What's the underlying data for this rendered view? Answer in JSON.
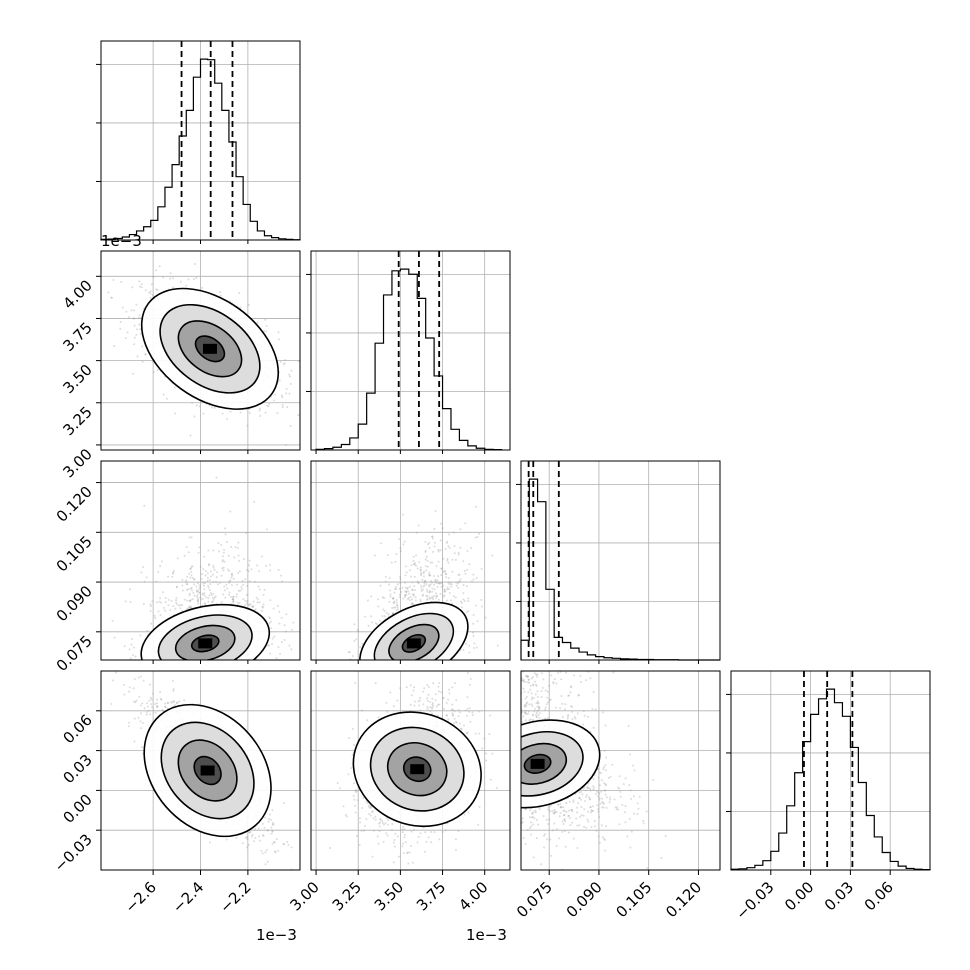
{
  "chart_data": {
    "type": "scatter",
    "kind": "corner-plot",
    "parameters": 4,
    "grid": true,
    "colors": {
      "hist": "#000000",
      "points": "#9a9a9a",
      "density": "#000000",
      "grid": "#b0b0b0"
    },
    "quantile_line_style": "dashed",
    "axes": [
      {
        "range": [
          -2.82,
          -1.98
        ],
        "ticks": [
          -2.6,
          -2.4,
          -2.2
        ],
        "tick_labels": [
          "−2.6",
          "−2.4",
          "−2.2"
        ],
        "offset_label": "1e−3",
        "median": -2.357,
        "quantiles": [
          -2.48,
          -2.357,
          -2.265
        ]
      },
      {
        "range": [
          2.97,
          4.15
        ],
        "ticks": [
          3.0,
          3.25,
          3.5,
          3.75,
          4.0
        ],
        "tick_labels": [
          "3.00",
          "3.25",
          "3.50",
          "3.75",
          "4.00"
        ],
        "offset_label": "1e−3",
        "median": 3.61,
        "quantiles": [
          3.49,
          3.61,
          3.73
        ]
      },
      {
        "range": [
          0.0665,
          0.1265
        ],
        "ticks": [
          0.075,
          0.09,
          0.105,
          0.12
        ],
        "tick_labels": [
          "0.075",
          "0.090",
          "0.105",
          "0.120"
        ],
        "offset_label": "",
        "median": 0.0702,
        "quantiles": [
          0.0688,
          0.0702,
          0.0779
        ]
      },
      {
        "range": [
          -0.06,
          0.09
        ],
        "ticks": [
          -0.03,
          0.0,
          0.03,
          0.06
        ],
        "tick_labels": [
          "−0.03",
          "0.00",
          "0.03",
          "0.06"
        ],
        "offset_label": "",
        "median": 0.0125,
        "quantiles": [
          -0.005,
          0.0125,
          0.0315
        ]
      }
    ],
    "histograms": [
      {
        "param": 0,
        "bins": [
          -2.82,
          -2.79,
          -2.76,
          -2.73,
          -2.7,
          -2.67,
          -2.64,
          -2.61,
          -2.58,
          -2.55,
          -2.52,
          -2.49,
          -2.46,
          -2.43,
          -2.4,
          -2.37,
          -2.34,
          -2.31,
          -2.28,
          -2.25,
          -2.22,
          -2.19,
          -2.16,
          -2.13,
          -2.1,
          -2.07,
          -2.04,
          -2.01,
          -1.98
        ],
        "counts": [
          2,
          3,
          5,
          10,
          18,
          30,
          44,
          65,
          110,
          175,
          250,
          345,
          430,
          540,
          600,
          598,
          520,
          430,
          325,
          210,
          118,
          62,
          30,
          14,
          8,
          4,
          2,
          1
        ]
      },
      {
        "param": 1,
        "bins": [
          3.0,
          3.05,
          3.1,
          3.15,
          3.2,
          3.25,
          3.3,
          3.35,
          3.4,
          3.45,
          3.5,
          3.55,
          3.6,
          3.65,
          3.7,
          3.75,
          3.8,
          3.85,
          3.9,
          3.95,
          4.0,
          4.05,
          4.1
        ],
        "counts": [
          2,
          4,
          8,
          16,
          35,
          75,
          165,
          310,
          450,
          520,
          525,
          510,
          440,
          325,
          215,
          120,
          60,
          28,
          12,
          5,
          2,
          1
        ]
      },
      {
        "param": 2,
        "bins": [
          0.0665,
          0.069,
          0.0715,
          0.074,
          0.0765,
          0.079,
          0.0815,
          0.084,
          0.0865,
          0.089,
          0.0915,
          0.094,
          0.0965,
          0.099,
          0.1015,
          0.104,
          0.1065,
          0.109,
          0.1115,
          0.114,
          0.1165,
          0.119,
          0.1215,
          0.124,
          0.1265
        ],
        "counts": [
          70,
          640,
          560,
          250,
          80,
          62,
          42,
          28,
          18,
          12,
          8,
          6,
          4,
          3,
          2,
          2,
          1,
          1,
          1,
          0,
          0,
          0,
          0,
          0
        ]
      },
      {
        "param": 3,
        "bins": [
          -0.06,
          -0.054,
          -0.048,
          -0.042,
          -0.036,
          -0.03,
          -0.024,
          -0.018,
          -0.012,
          -0.006,
          0.0,
          0.006,
          0.012,
          0.018,
          0.024,
          0.03,
          0.036,
          0.042,
          0.048,
          0.054,
          0.06,
          0.066,
          0.072,
          0.078,
          0.084,
          0.09
        ],
        "counts": [
          2,
          3,
          6,
          12,
          24,
          48,
          95,
          165,
          250,
          330,
          400,
          440,
          465,
          430,
          395,
          315,
          225,
          140,
          85,
          45,
          22,
          10,
          4,
          2,
          1
        ]
      }
    ],
    "joint": [
      {
        "x": 0,
        "y": 1,
        "center": [
          -2.36,
          3.57
        ],
        "sd": [
          0.11,
          0.13
        ],
        "rho": -0.55
      },
      {
        "x": 0,
        "y": 2,
        "center": [
          -2.38,
          0.0715
        ],
        "sd": [
          0.1,
          0.0045
        ],
        "rho": 0.25,
        "skew": 1
      },
      {
        "x": 1,
        "y": 2,
        "center": [
          3.58,
          0.0715
        ],
        "sd": [
          0.12,
          0.0045
        ],
        "rho": 0.45,
        "skew": 1
      },
      {
        "x": 0,
        "y": 3,
        "center": [
          -2.37,
          0.015
        ],
        "sd": [
          0.1,
          0.02
        ],
        "rho": -0.8
      },
      {
        "x": 1,
        "y": 3,
        "center": [
          3.6,
          0.016
        ],
        "sd": [
          0.12,
          0.02
        ],
        "rho": 0.25
      },
      {
        "x": 2,
        "y": 3,
        "center": [
          0.0715,
          0.02
        ],
        "sd": [
          0.0045,
          0.02
        ],
        "rho": -0.35,
        "skew": 1
      }
    ]
  }
}
